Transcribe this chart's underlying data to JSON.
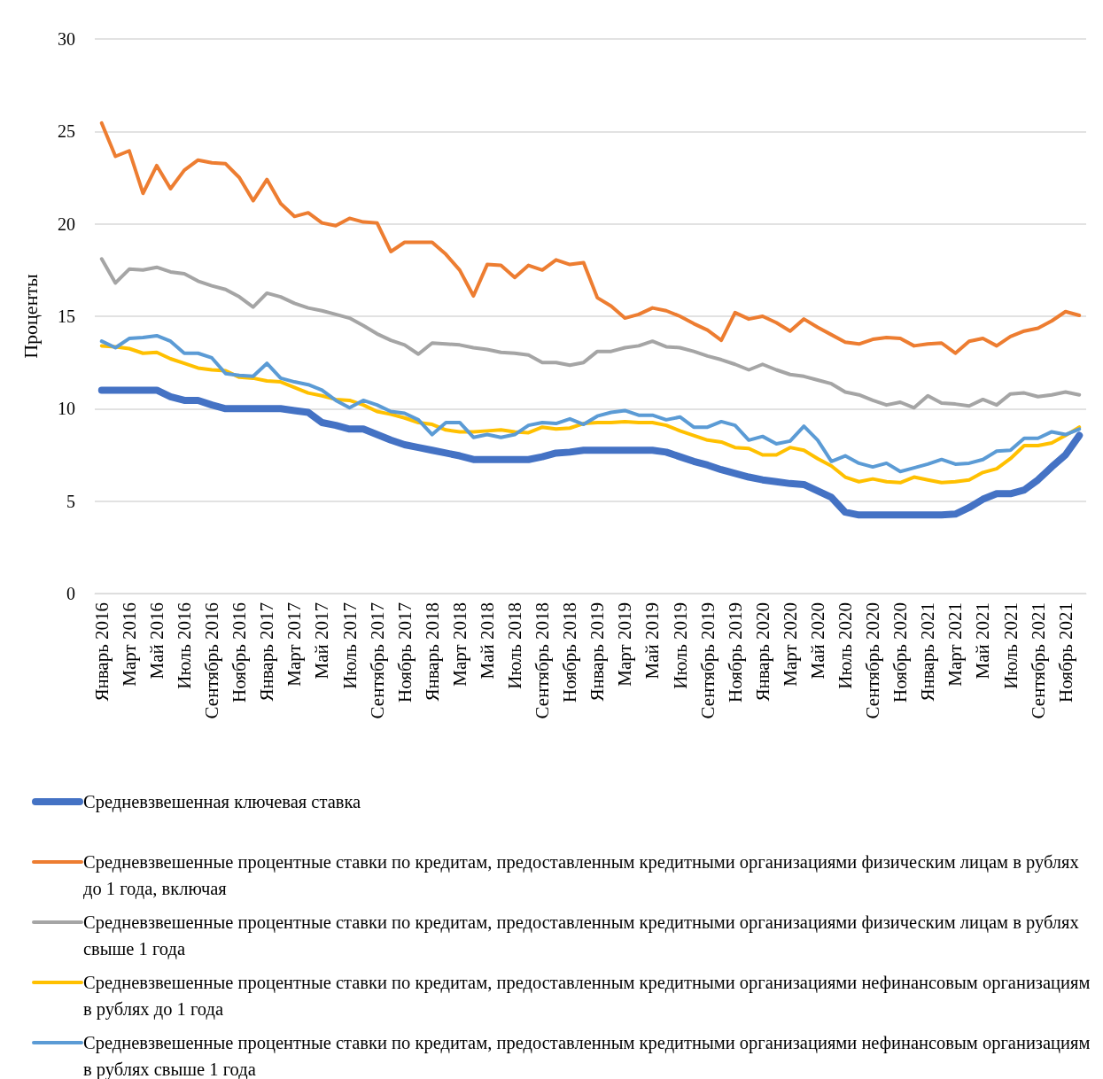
{
  "chart_data": {
    "type": "line",
    "ylabel": "Проценты",
    "ylim": [
      0,
      30
    ],
    "yticks": [
      0,
      5,
      10,
      15,
      20,
      25,
      30
    ],
    "grid": "y",
    "legend": "bottom",
    "marker": "none",
    "line_style": "solid",
    "categories": [
      "Январь 2016",
      null,
      "Март 2016",
      null,
      "Май 2016",
      null,
      "Июль 2016",
      null,
      "Сентябрь 2016",
      null,
      "Ноябрь 2016",
      null,
      "Январь 2017",
      null,
      "Март 2017",
      null,
      "Май 2017",
      null,
      "Июль 2017",
      null,
      "Сентябрь 2017",
      null,
      "Ноябрь 2017",
      null,
      "Январь 2018",
      null,
      "Март 2018",
      null,
      "Май 2018",
      null,
      "Июль 2018",
      null,
      "Сентябрь 2018",
      null,
      "Ноябрь 2018",
      null,
      "Январь 2019",
      null,
      "Март 2019",
      null,
      "Май 2019",
      null,
      "Июль 2019",
      null,
      "Сентябрь 2019",
      null,
      "Ноябрь 2019",
      null,
      "Январь 2020",
      null,
      "Март 2020",
      null,
      "Май 2020",
      null,
      "Июль 2020",
      null,
      "Сентябрь 2020",
      null,
      "Ноябрь 2020",
      null,
      "Январь 2021",
      null,
      "Март 2021",
      null,
      "Май 2021",
      null,
      "Июль 2021",
      null,
      "Сентябрь 2021",
      null,
      "Ноябрь 2021",
      null
    ],
    "series": [
      {
        "name": "Средневзвешенная ключевая ставка",
        "color": "#4472c4",
        "values": [
          11,
          11,
          11,
          11,
          11,
          10.65,
          10.45,
          10.45,
          10.2,
          10,
          10,
          10,
          10,
          10,
          9.9,
          9.8,
          9.25,
          9.1,
          8.9,
          8.9,
          8.6,
          8.3,
          8.05,
          7.9,
          7.75,
          7.6,
          7.45,
          7.25,
          7.25,
          7.25,
          7.25,
          7.25,
          7.4,
          7.6,
          7.65,
          7.75,
          7.75,
          7.75,
          7.75,
          7.75,
          7.75,
          7.65,
          7.4,
          7.15,
          6.95,
          6.7,
          6.5,
          6.3,
          6.15,
          6.05,
          5.95,
          5.9,
          5.55,
          5.2,
          4.4,
          4.25,
          4.25,
          4.25,
          4.25,
          4.25,
          4.25,
          4.25,
          4.3,
          4.65,
          5.1,
          5.4,
          5.4,
          5.6,
          6.15,
          6.85,
          7.5,
          8.55
        ]
      },
      {
        "name": "Средневзвешенные процентные ставки по кредитам, предоставленным кредитными организациями физическим лицам в рублях до 1 года, включая",
        "color": "#ed7d31",
        "values": [
          25.45,
          23.65,
          23.95,
          21.65,
          23.15,
          21.9,
          22.9,
          23.45,
          23.3,
          23.25,
          22.5,
          21.25,
          22.4,
          21.1,
          20.4,
          20.6,
          20.05,
          19.9,
          20.3,
          20.1,
          20.05,
          18.5,
          19,
          19,
          19,
          18.35,
          17.5,
          16.1,
          17.8,
          17.75,
          17.1,
          17.75,
          17.5,
          18.05,
          17.8,
          17.9,
          16,
          15.55,
          14.9,
          15.1,
          15.45,
          15.3,
          15,
          14.6,
          14.25,
          13.7,
          15.2,
          14.85,
          15,
          14.65,
          14.2,
          14.85,
          14.4,
          14,
          13.6,
          13.5,
          13.75,
          13.85,
          13.8,
          13.4,
          13.5,
          13.55,
          13,
          13.65,
          13.8,
          13.4,
          13.9,
          14.2,
          14.35,
          14.75,
          15.25,
          15.05
        ]
      },
      {
        "name": "Средневзвешенные процентные ставки по кредитам, предоставленным кредитными организациями физическим лицам в рублях свыше 1 года",
        "color": "#a5a5a5",
        "values": [
          18.1,
          16.8,
          17.55,
          17.5,
          17.65,
          17.4,
          17.3,
          16.9,
          16.65,
          16.45,
          16.05,
          15.5,
          16.25,
          16.05,
          15.7,
          15.45,
          15.3,
          15.1,
          14.9,
          14.5,
          14.05,
          13.7,
          13.45,
          12.95,
          13.55,
          13.5,
          13.45,
          13.3,
          13.2,
          13.05,
          13,
          12.9,
          12.5,
          12.5,
          12.35,
          12.5,
          13.1,
          13.1,
          13.3,
          13.4,
          13.65,
          13.35,
          13.3,
          13.1,
          12.85,
          12.65,
          12.4,
          12.1,
          12.4,
          12.1,
          11.85,
          11.75,
          11.55,
          11.35,
          10.9,
          10.75,
          10.45,
          10.2,
          10.35,
          10.05,
          10.7,
          10.3,
          10.25,
          10.15,
          10.5,
          10.2,
          10.8,
          10.85,
          10.65,
          10.75,
          10.9,
          10.75
        ]
      },
      {
        "name": "Средневзвешенные процентные ставки по кредитам, предоставленным кредитными организациями нефинансовым организациям в рублях до 1 года",
        "color": "#ffc000",
        "values": [
          13.4,
          13.35,
          13.25,
          13,
          13.05,
          12.7,
          12.45,
          12.2,
          12.1,
          12.05,
          11.7,
          11.65,
          11.5,
          11.45,
          11.15,
          10.85,
          10.7,
          10.5,
          10.45,
          10.2,
          9.85,
          9.7,
          9.5,
          9.25,
          9.15,
          8.85,
          8.75,
          8.75,
          8.8,
          8.85,
          8.75,
          8.7,
          9,
          8.9,
          8.95,
          9.2,
          9.25,
          9.25,
          9.3,
          9.25,
          9.25,
          9.1,
          8.8,
          8.55,
          8.3,
          8.2,
          7.9,
          7.85,
          7.5,
          7.5,
          7.9,
          7.75,
          7.3,
          6.9,
          6.3,
          6.05,
          6.2,
          6.05,
          6,
          6.3,
          6.15,
          6,
          6.05,
          6.15,
          6.55,
          6.75,
          7.3,
          8,
          8,
          8.15,
          8.55,
          9
        ]
      },
      {
        "name": "Средневзвешенные процентные ставки по кредитам, предоставленным кредитными организациями нефинансовым организациям в рублях свыше 1 года",
        "color": "#5b9bd5",
        "values": [
          13.65,
          13.3,
          13.8,
          13.85,
          13.95,
          13.65,
          13,
          13,
          12.75,
          11.9,
          11.8,
          11.75,
          12.45,
          11.65,
          11.45,
          11.3,
          11,
          10.45,
          10.05,
          10.45,
          10.2,
          9.85,
          9.75,
          9.4,
          8.6,
          9.25,
          9.25,
          8.45,
          8.6,
          8.45,
          8.6,
          9.1,
          9.25,
          9.2,
          9.45,
          9.15,
          9.6,
          9.8,
          9.9,
          9.65,
          9.65,
          9.4,
          9.55,
          9,
          9,
          9.3,
          9.1,
          8.3,
          8.5,
          8.1,
          8.25,
          9.05,
          8.3,
          7.15,
          7.45,
          7.05,
          6.85,
          7.05,
          6.6,
          6.8,
          7,
          7.25,
          7,
          7.05,
          7.25,
          7.7,
          7.75,
          8.4,
          8.4,
          8.75,
          8.6,
          8.9
        ]
      }
    ]
  }
}
